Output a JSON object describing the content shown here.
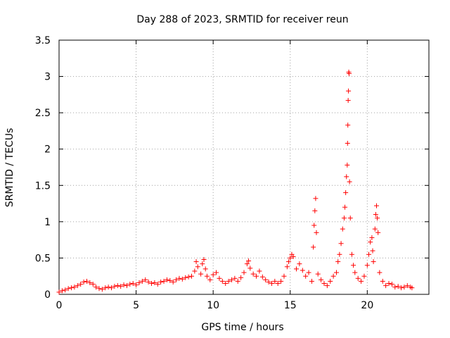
{
  "chart_data": {
    "type": "scatter",
    "title": "Day 288 of 2023, SRMTID for receiver reun",
    "xlabel": "GPS time / hours",
    "ylabel": "SRMTID / TECUs",
    "xlim": [
      0,
      24
    ],
    "ylim": [
      0,
      3.5
    ],
    "xticks": [
      0,
      5,
      10,
      15,
      20
    ],
    "xtick_labels": [
      "0",
      "5",
      "10",
      "15",
      "20"
    ],
    "yticks": [
      0,
      0.5,
      1,
      1.5,
      2,
      2.5,
      3,
      3.5
    ],
    "ytick_labels": [
      "0",
      "0.5",
      "1",
      "1.5",
      "2",
      "2.5",
      "3",
      "3.5"
    ],
    "grid": true,
    "marker": "plus",
    "color": "#ff0000",
    "series": [
      {
        "name": "SRMTID",
        "points": [
          [
            0.0,
            0.03
          ],
          [
            0.2,
            0.05
          ],
          [
            0.4,
            0.06
          ],
          [
            0.6,
            0.08
          ],
          [
            0.8,
            0.09
          ],
          [
            1.0,
            0.1
          ],
          [
            1.2,
            0.12
          ],
          [
            1.4,
            0.14
          ],
          [
            1.6,
            0.17
          ],
          [
            1.8,
            0.18
          ],
          [
            2.0,
            0.16
          ],
          [
            2.2,
            0.14
          ],
          [
            2.4,
            0.1
          ],
          [
            2.6,
            0.08
          ],
          [
            2.8,
            0.07
          ],
          [
            3.0,
            0.09
          ],
          [
            3.2,
            0.1
          ],
          [
            3.4,
            0.09
          ],
          [
            3.6,
            0.11
          ],
          [
            3.8,
            0.12
          ],
          [
            4.0,
            0.11
          ],
          [
            4.2,
            0.13
          ],
          [
            4.4,
            0.12
          ],
          [
            4.6,
            0.14
          ],
          [
            4.8,
            0.15
          ],
          [
            5.0,
            0.13
          ],
          [
            5.2,
            0.16
          ],
          [
            5.4,
            0.18
          ],
          [
            5.6,
            0.2
          ],
          [
            5.8,
            0.17
          ],
          [
            6.0,
            0.15
          ],
          [
            6.2,
            0.16
          ],
          [
            6.4,
            0.14
          ],
          [
            6.6,
            0.17
          ],
          [
            6.8,
            0.18
          ],
          [
            7.0,
            0.2
          ],
          [
            7.2,
            0.19
          ],
          [
            7.4,
            0.17
          ],
          [
            7.6,
            0.2
          ],
          [
            7.8,
            0.22
          ],
          [
            8.0,
            0.21
          ],
          [
            8.2,
            0.23
          ],
          [
            8.4,
            0.24
          ],
          [
            8.6,
            0.25
          ],
          [
            8.8,
            0.32
          ],
          [
            8.9,
            0.45
          ],
          [
            9.0,
            0.38
          ],
          [
            9.2,
            0.28
          ],
          [
            9.3,
            0.42
          ],
          [
            9.4,
            0.48
          ],
          [
            9.5,
            0.35
          ],
          [
            9.6,
            0.25
          ],
          [
            9.8,
            0.2
          ],
          [
            10.0,
            0.27
          ],
          [
            10.2,
            0.3
          ],
          [
            10.4,
            0.22
          ],
          [
            10.6,
            0.18
          ],
          [
            10.8,
            0.15
          ],
          [
            11.0,
            0.18
          ],
          [
            11.2,
            0.2
          ],
          [
            11.4,
            0.22
          ],
          [
            11.6,
            0.18
          ],
          [
            11.8,
            0.23
          ],
          [
            12.0,
            0.3
          ],
          [
            12.2,
            0.42
          ],
          [
            12.3,
            0.46
          ],
          [
            12.4,
            0.36
          ],
          [
            12.6,
            0.28
          ],
          [
            12.8,
            0.25
          ],
          [
            13.0,
            0.32
          ],
          [
            13.2,
            0.24
          ],
          [
            13.4,
            0.2
          ],
          [
            13.6,
            0.17
          ],
          [
            13.8,
            0.15
          ],
          [
            14.0,
            0.18
          ],
          [
            14.2,
            0.15
          ],
          [
            14.4,
            0.18
          ],
          [
            14.6,
            0.25
          ],
          [
            14.8,
            0.38
          ],
          [
            14.9,
            0.45
          ],
          [
            15.0,
            0.5
          ],
          [
            15.1,
            0.55
          ],
          [
            15.2,
            0.52
          ],
          [
            15.4,
            0.35
          ],
          [
            15.6,
            0.42
          ],
          [
            15.8,
            0.33
          ],
          [
            16.0,
            0.25
          ],
          [
            16.2,
            0.3
          ],
          [
            16.4,
            0.18
          ],
          [
            16.5,
            0.65
          ],
          [
            16.55,
            0.95
          ],
          [
            16.6,
            1.15
          ],
          [
            16.65,
            1.32
          ],
          [
            16.7,
            0.85
          ],
          [
            16.8,
            0.28
          ],
          [
            17.0,
            0.2
          ],
          [
            17.2,
            0.15
          ],
          [
            17.4,
            0.12
          ],
          [
            17.6,
            0.18
          ],
          [
            17.8,
            0.25
          ],
          [
            18.0,
            0.3
          ],
          [
            18.1,
            0.45
          ],
          [
            18.2,
            0.55
          ],
          [
            18.3,
            0.7
          ],
          [
            18.4,
            0.9
          ],
          [
            18.5,
            1.05
          ],
          [
            18.55,
            1.2
          ],
          [
            18.6,
            1.4
          ],
          [
            18.65,
            1.62
          ],
          [
            18.7,
            1.78
          ],
          [
            18.72,
            2.08
          ],
          [
            18.74,
            2.33
          ],
          [
            18.76,
            2.67
          ],
          [
            18.78,
            2.8
          ],
          [
            18.8,
            3.06
          ],
          [
            18.82,
            3.04
          ],
          [
            18.85,
            1.55
          ],
          [
            18.9,
            1.05
          ],
          [
            19.0,
            0.55
          ],
          [
            19.1,
            0.4
          ],
          [
            19.2,
            0.3
          ],
          [
            19.4,
            0.22
          ],
          [
            19.6,
            0.18
          ],
          [
            19.8,
            0.25
          ],
          [
            20.0,
            0.4
          ],
          [
            20.1,
            0.55
          ],
          [
            20.2,
            0.72
          ],
          [
            20.3,
            0.78
          ],
          [
            20.35,
            0.6
          ],
          [
            20.4,
            0.45
          ],
          [
            20.5,
            0.9
          ],
          [
            20.55,
            1.1
          ],
          [
            20.6,
            1.22
          ],
          [
            20.65,
            1.05
          ],
          [
            20.7,
            0.85
          ],
          [
            20.8,
            0.3
          ],
          [
            21.0,
            0.18
          ],
          [
            21.2,
            0.12
          ],
          [
            21.4,
            0.15
          ],
          [
            21.6,
            0.14
          ],
          [
            21.8,
            0.1
          ],
          [
            22.0,
            0.11
          ],
          [
            22.2,
            0.09
          ],
          [
            22.4,
            0.1
          ],
          [
            22.6,
            0.12
          ],
          [
            22.8,
            0.1
          ],
          [
            22.9,
            0.09
          ]
        ]
      }
    ]
  }
}
